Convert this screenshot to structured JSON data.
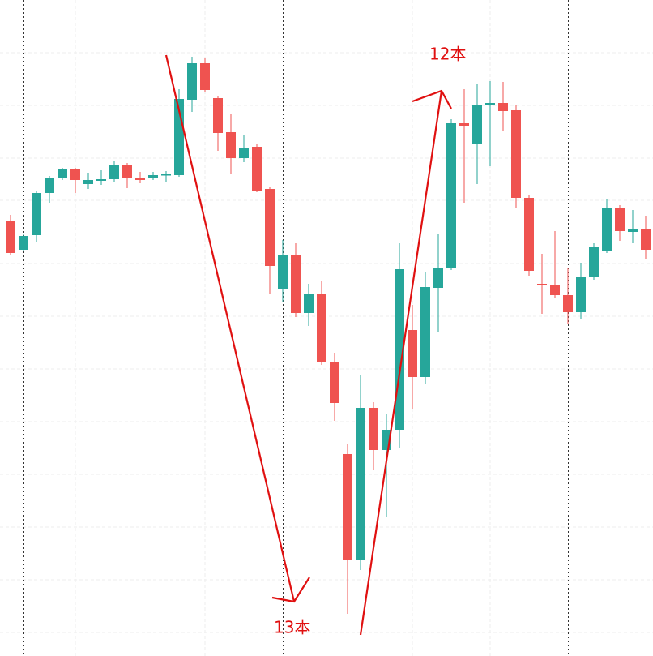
{
  "chart_data": {
    "type": "candlestick",
    "categories": [
      null,
      null,
      null,
      null,
      null,
      null,
      null,
      null,
      null,
      null,
      null,
      null,
      null,
      null,
      null,
      null,
      null,
      null,
      null,
      null,
      null,
      null,
      null,
      null,
      null,
      null,
      null,
      null,
      null,
      null,
      null,
      null,
      null,
      null,
      null,
      null,
      null,
      null,
      null,
      null,
      null,
      null,
      null,
      null,
      null,
      null,
      null,
      null,
      null,
      null
    ],
    "open": [
      537,
      501,
      519,
      571,
      589,
      600,
      582,
      586,
      588,
      606,
      590,
      590,
      593,
      593,
      686,
      731,
      688,
      646,
      614,
      628,
      576,
      453,
      495,
      423,
      447,
      362,
      249,
      119,
      306,
      254,
      279,
      402,
      344,
      454,
      478,
      657,
      632,
      680,
      682,
      673,
      565,
      459,
      458,
      445,
      424,
      468,
      499,
      552,
      523,
      527
    ],
    "high": [
      544,
      521,
      573,
      592,
      602,
      602,
      596,
      599,
      610,
      608,
      597,
      597,
      598,
      699,
      739,
      737,
      691,
      668,
      642,
      631,
      579,
      513,
      509,
      459,
      462,
      374,
      261,
      347,
      313,
      298,
      509,
      433,
      474,
      520,
      662,
      699,
      705,
      709,
      708,
      680,
      569,
      496,
      524,
      478,
      485,
      509,
      563,
      556,
      550,
      543
    ],
    "low": [
      495,
      499,
      511,
      559,
      587,
      571,
      576,
      581,
      585,
      577,
      583,
      587,
      584,
      591,
      671,
      696,
      623,
      594,
      609,
      572,
      447,
      437,
      418,
      407,
      359,
      290,
      52,
      106,
      229,
      171,
      256,
      304,
      335,
      399,
      476,
      559,
      582,
      604,
      648,
      553,
      469,
      422,
      442,
      409,
      416,
      464,
      497,
      512,
      509,
      489
    ],
    "close": [
      497,
      518,
      571,
      589,
      600,
      587,
      587,
      588,
      606,
      589,
      587,
      593,
      594,
      687,
      731,
      698,
      645,
      614,
      627,
      574,
      481,
      494,
      423,
      447,
      362,
      312,
      119,
      306,
      254,
      279,
      477,
      344,
      455,
      479,
      657,
      654,
      679,
      682,
      672,
      565,
      475,
      457,
      445,
      424,
      468,
      505,
      552,
      524,
      527,
      501
    ],
    "up_color": "#26a69a",
    "down_color": "#ef5350",
    "ylim": [
      0,
      809
    ],
    "annotations": [
      "12本",
      "13本"
    ]
  }
}
